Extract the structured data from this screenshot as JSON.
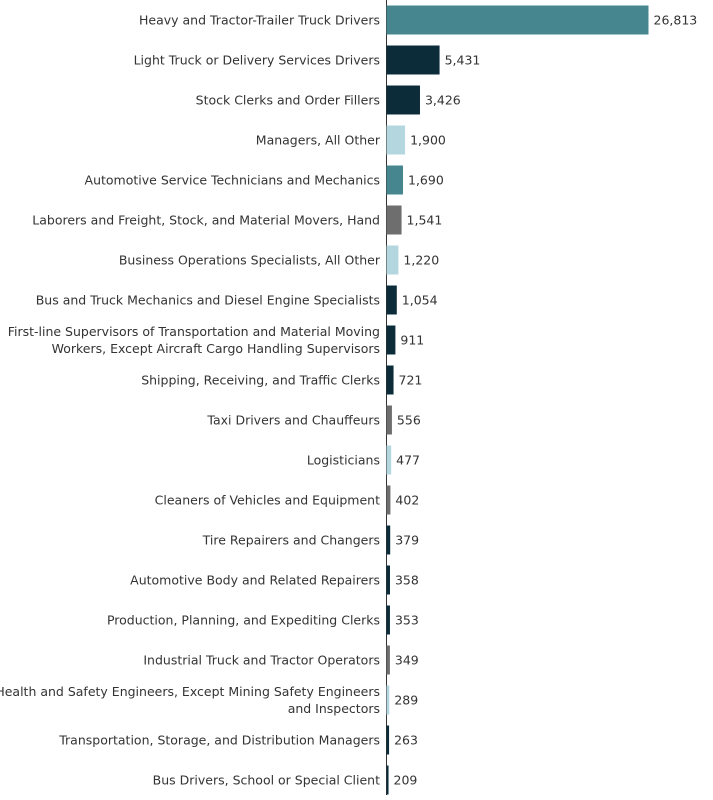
{
  "chart_data": {
    "type": "bar",
    "orientation": "horizontal",
    "title": "",
    "xlabel": "",
    "ylabel": "",
    "xlim": [
      0,
      26813
    ],
    "grid": false,
    "legend": "none",
    "categories": [
      [
        "Heavy and Tractor-Trailer Truck Drivers"
      ],
      [
        "Light Truck or Delivery Services Drivers"
      ],
      [
        "Stock Clerks and Order Fillers"
      ],
      [
        "Managers, All Other"
      ],
      [
        "Automotive Service Technicians and Mechanics"
      ],
      [
        "Laborers and Freight, Stock, and Material Movers, Hand"
      ],
      [
        "Business Operations Specialists, All Other"
      ],
      [
        "Bus and Truck Mechanics and Diesel Engine Specialists"
      ],
      [
        "First-line Supervisors of Transportation and Material Moving",
        "Workers, Except Aircraft Cargo Handling Supervisors"
      ],
      [
        "Shipping, Receiving, and Traffic Clerks"
      ],
      [
        "Taxi Drivers and Chauffeurs"
      ],
      [
        "Logisticians"
      ],
      [
        "Cleaners of Vehicles and Equipment"
      ],
      [
        "Tire Repairers and Changers"
      ],
      [
        "Automotive Body and Related Repairers"
      ],
      [
        "Production, Planning, and Expediting Clerks"
      ],
      [
        "Industrial Truck and Tractor Operators"
      ],
      [
        "Health and Safety Engineers, Except Mining Safety Engineers",
        "and Inspectors"
      ],
      [
        "Transportation, Storage, and Distribution Managers"
      ],
      [
        "Bus Drivers, School or Special Client"
      ]
    ],
    "values": [
      26813,
      5431,
      3426,
      1900,
      1690,
      1541,
      1220,
      1054,
      911,
      721,
      556,
      477,
      402,
      379,
      358,
      353,
      349,
      289,
      263,
      209
    ],
    "value_labels": [
      "26,813",
      "5,431",
      "3,426",
      "1,900",
      "1,690",
      "1,541",
      "1,220",
      "1,054",
      "911",
      "721",
      "556",
      "477",
      "402",
      "379",
      "358",
      "353",
      "349",
      "289",
      "263",
      "209"
    ],
    "bar_colors": [
      "#46878f",
      "#0d2c39",
      "#0d2c39",
      "#b4d6de",
      "#46878f",
      "#6e6e6e",
      "#b4d6de",
      "#0d2c39",
      "#0d2c39",
      "#0d2c39",
      "#6e6e6e",
      "#b4d6de",
      "#6e6e6e",
      "#0d2c39",
      "#0d2c39",
      "#0d2c39",
      "#6e6e6e",
      "#b4d6de",
      "#0d2c39",
      "#0d2c39"
    ],
    "axis_color": "#333333"
  }
}
